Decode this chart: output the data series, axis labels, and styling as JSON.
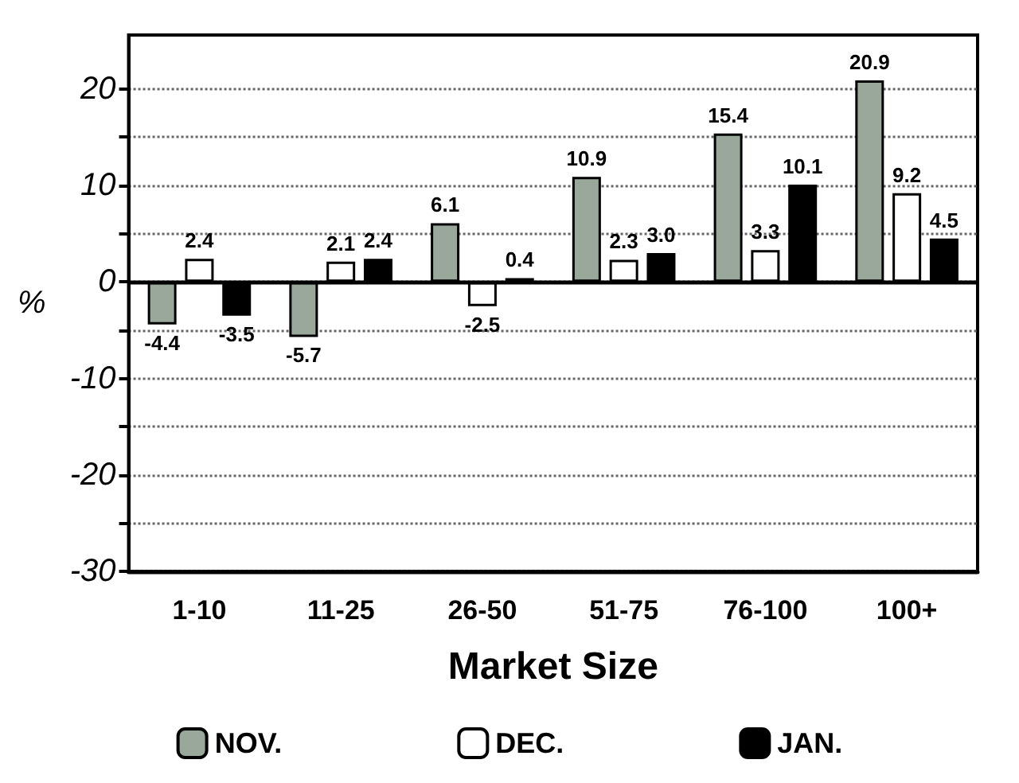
{
  "chart_data": {
    "type": "bar",
    "xlabel": "Market Size",
    "ylabel": "%",
    "categories": [
      "1-10",
      "11-25",
      "26-50",
      "51-75",
      "76-100",
      "100+"
    ],
    "series": [
      {
        "name": "NOV.",
        "color": "#9aa89c",
        "values": [
          -4.4,
          -5.7,
          6.1,
          10.9,
          15.4,
          20.9
        ],
        "value_labels": [
          "-4.4",
          "-5.7",
          "6.1",
          "10.9",
          "15.4",
          "20.9"
        ]
      },
      {
        "name": "DEC.",
        "color": "#ffffff",
        "values": [
          2.4,
          2.1,
          -2.5,
          2.3,
          3.3,
          9.2
        ],
        "value_labels": [
          "2.4",
          "2.1",
          "-2.5",
          "2.3",
          "3.3",
          "9.2"
        ]
      },
      {
        "name": "JAN.",
        "color": "#000000",
        "values": [
          -3.5,
          2.4,
          0.4,
          3.0,
          10.1,
          4.5
        ],
        "value_labels": [
          "-3.5",
          "2.4",
          "0.4",
          "3.0",
          "10.1",
          "4.5"
        ]
      }
    ],
    "ylim": [
      -30,
      25.6
    ],
    "yticks": [
      -30,
      {
        "value": -25,
        "label": null
      },
      -20,
      {
        "value": -15,
        "label": null
      },
      -10,
      {
        "value": -5,
        "label": null
      },
      0,
      {
        "value": 5,
        "label": null
      },
      10,
      {
        "value": 15,
        "label": null
      },
      20
    ],
    "grid": "y",
    "legend": "bottom"
  }
}
